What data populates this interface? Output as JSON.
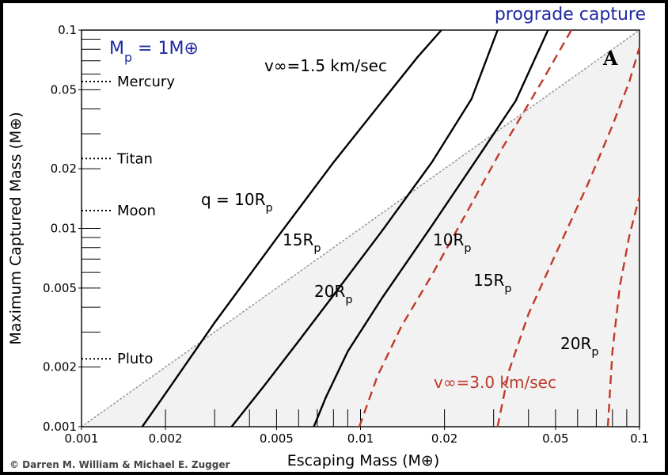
{
  "chart_data": {
    "type": "line",
    "title": "prograde capture",
    "planet_label": "M_p = 1M⊕",
    "xlabel": "Escaping Mass (M⊕)",
    "ylabel": "Maximum Captured Mass (M⊕)",
    "xscale": "log",
    "yscale": "log",
    "xlim": [
      0.001,
      0.1
    ],
    "ylim": [
      0.001,
      0.1
    ],
    "xticks": [
      {
        "v": 0.001,
        "label": "0.001"
      },
      {
        "v": 0.002,
        "label": "0.002"
      },
      {
        "v": 0.005,
        "label": "0.005"
      },
      {
        "v": 0.01,
        "label": "0.01"
      },
      {
        "v": 0.02,
        "label": "0.02"
      },
      {
        "v": 0.05,
        "label": "0.05"
      },
      {
        "v": 0.1,
        "label": "0.1"
      }
    ],
    "yticks": [
      {
        "v": 0.001,
        "label": "0.001"
      },
      {
        "v": 0.002,
        "label": "0.002"
      },
      {
        "v": 0.005,
        "label": "0.005"
      },
      {
        "v": 0.01,
        "label": "0.01"
      },
      {
        "v": 0.02,
        "label": "0.02"
      },
      {
        "v": 0.05,
        "label": "0.05"
      },
      {
        "v": 0.1,
        "label": "0.1"
      }
    ],
    "reference_masses": [
      {
        "name": "Mercury",
        "y": 0.055
      },
      {
        "name": "Titan",
        "y": 0.0225
      },
      {
        "name": "Moon",
        "y": 0.0123
      },
      {
        "name": "Pluto",
        "y": 0.0022
      }
    ],
    "velocity_labels": [
      {
        "text": "v∞=1.5 km/sec",
        "color": "#000000"
      },
      {
        "text": "v∞=3.0 km/sec",
        "color": "#c0392b"
      }
    ],
    "series": [
      {
        "name": "q = 10R_p",
        "group": "v∞=1.5 km/sec",
        "color": "#000000",
        "dash": false,
        "x": [
          0.00165,
          0.002,
          0.003,
          0.005,
          0.008,
          0.012,
          0.016,
          0.0195
        ],
        "y": [
          0.001,
          0.00147,
          0.00335,
          0.0089,
          0.0215,
          0.044,
          0.073,
          0.1
        ]
      },
      {
        "name": "15R_p",
        "group": "v∞=1.5 km/sec",
        "color": "#000000",
        "dash": false,
        "x": [
          0.00345,
          0.0045,
          0.006,
          0.008,
          0.012,
          0.018,
          0.025,
          0.031
        ],
        "y": [
          0.001,
          0.0016,
          0.0027,
          0.0046,
          0.0098,
          0.0215,
          0.045,
          0.1
        ]
      },
      {
        "name": "20R_p",
        "group": "v∞=1.5 km/sec",
        "color": "#000000",
        "dash": false,
        "x": [
          0.0068,
          0.0075,
          0.009,
          0.012,
          0.018,
          0.027,
          0.036,
          0.047
        ],
        "y": [
          0.001,
          0.0014,
          0.0024,
          0.0045,
          0.0103,
          0.024,
          0.044,
          0.1
        ]
      },
      {
        "name": "10R_p",
        "group": "v∞=3.0 km/sec",
        "color": "#c0392b",
        "dash": true,
        "x": [
          0.0099,
          0.0115,
          0.014,
          0.018,
          0.024,
          0.032,
          0.045,
          0.057
        ],
        "y": [
          0.001,
          0.0018,
          0.0032,
          0.0058,
          0.012,
          0.025,
          0.056,
          0.1
        ]
      },
      {
        "name": "15R_p",
        "group": "v∞=3.0 km/sec",
        "color": "#c0392b",
        "dash": true,
        "x": [
          0.031,
          0.034,
          0.04,
          0.05,
          0.065,
          0.08,
          0.092,
          0.1
        ],
        "y": [
          0.001,
          0.0019,
          0.0037,
          0.0074,
          0.0165,
          0.033,
          0.055,
          0.082
        ]
      },
      {
        "name": "20R_p",
        "group": "v∞=3.0 km/sec",
        "color": "#c0392b",
        "dash": true,
        "x": [
          0.077,
          0.08,
          0.085,
          0.092,
          0.1
        ],
        "y": [
          0.001,
          0.0024,
          0.0051,
          0.0092,
          0.0145
        ]
      }
    ],
    "reference_line": {
      "style": "dotted",
      "color": "#999999",
      "x": [
        0.001,
        0.1
      ],
      "y": [
        0.001,
        0.1
      ]
    },
    "region_label": "A",
    "legend": "none",
    "grid": false
  },
  "credit": "© Darren M. William & Michael E. Zugger"
}
